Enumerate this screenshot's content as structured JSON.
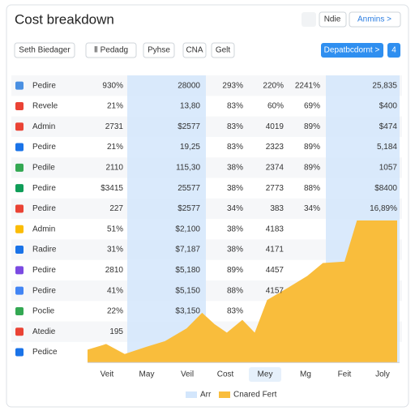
{
  "header": {
    "title": "Cost breakdown",
    "buttons": [
      "Ndie",
      "Anmins >"
    ]
  },
  "toolbar": {
    "filters": [
      "Seth Biedager",
      "Ⅱ Pedadg",
      "Pyhse",
      "CNA",
      "Gelt"
    ],
    "primary": "Depatbcdornt >",
    "count": "4"
  },
  "table": {
    "rows": [
      [
        "Pedire",
        "930%",
        "28000",
        "293%",
        "220%",
        "2241%",
        "25,835"
      ],
      [
        "Revele",
        "21%",
        "13,80",
        "83%",
        "60%",
        "69%",
        "$400"
      ],
      [
        "Admin",
        "2731",
        "$2577",
        "83%",
        "4019",
        "89%",
        "$474"
      ],
      [
        "Pedire",
        "21%",
        "19,25",
        "83%",
        "2323",
        "89%",
        "5,184"
      ],
      [
        "Pedile",
        "2110",
        "115,30",
        "38%",
        "2374",
        "89%",
        "1057"
      ],
      [
        "Pedire",
        "$3415",
        "25577",
        "38%",
        "2773",
        "88%",
        "$8400"
      ],
      [
        "Pedire",
        "227",
        "$2577",
        "34%",
        "383",
        "34%",
        "16,89%"
      ],
      [
        "Admin",
        "51%",
        "$2,100",
        "38%",
        "4183",
        null,
        null
      ],
      [
        "Radire",
        "31%",
        "$7,187",
        "38%",
        "4171",
        null,
        null
      ],
      [
        "Pedire",
        "2810",
        "$5,180",
        "89%",
        "4457",
        null,
        null
      ],
      [
        "Pedire",
        "41%",
        "$5,150",
        "88%",
        "4157",
        null,
        null
      ],
      [
        "Poclie",
        "22%",
        "$3,150",
        "83%",
        null,
        null,
        null
      ],
      [
        "Atedie",
        "195",
        null,
        null,
        null,
        null,
        null
      ],
      [
        "Pedice",
        null,
        null,
        null,
        null,
        null,
        null
      ]
    ]
  },
  "axis_labels": [
    "Veit",
    "May",
    "Veil",
    "Cost",
    "Mey",
    "Mg",
    "Feit",
    "Joly"
  ],
  "highlight": {
    "name": "Arr",
    "color": "#d3e6fc"
  },
  "chart_data": {
    "type": "area",
    "xlim": [
      0,
      100
    ],
    "ylim": [
      0,
      100
    ],
    "x": [
      0,
      6,
      12,
      19,
      25,
      32,
      37,
      41,
      45,
      50,
      54,
      58,
      65,
      71,
      76,
      83,
      87,
      100
    ],
    "series": [
      {
        "name": "Cnared Fert",
        "color": "#f9bd3c",
        "values": [
          9,
          13,
          6,
          11,
          15,
          24,
          35,
          27,
          21,
          30,
          21,
          44,
          53,
          61,
          70,
          71,
          100,
          100
        ]
      }
    ]
  }
}
